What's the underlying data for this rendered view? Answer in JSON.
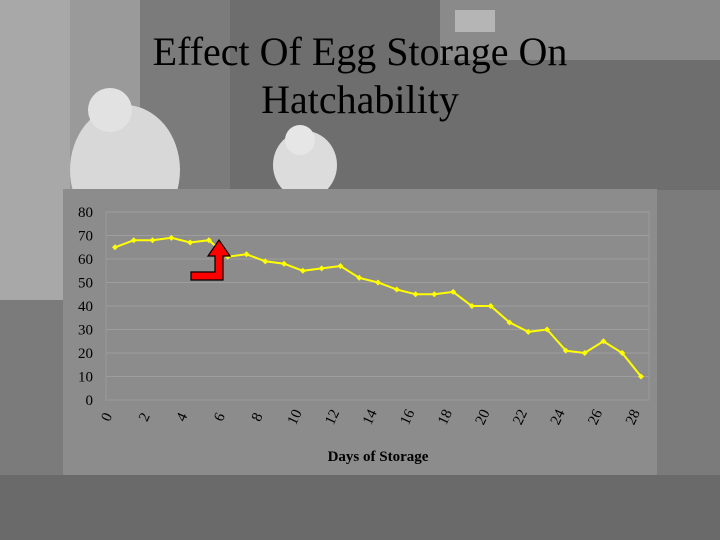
{
  "slide": {
    "title_line1": "Effect Of Egg Storage On",
    "title_line2": "Hatchability"
  },
  "colors": {
    "panel": "#8c8c8c",
    "series": "#ffff00",
    "arrow_fill": "#ff0000"
  },
  "chart_data": {
    "type": "line",
    "title": "",
    "xlabel": "Days of Storage",
    "ylabel": "",
    "xlim": [
      0,
      28
    ],
    "ylim": [
      0,
      80
    ],
    "x_ticks": [
      0,
      2,
      4,
      6,
      8,
      10,
      12,
      14,
      16,
      18,
      20,
      22,
      24,
      26,
      28
    ],
    "y_ticks": [
      0,
      10,
      20,
      30,
      40,
      50,
      60,
      70,
      80
    ],
    "grid": "horizontal",
    "legend": "none",
    "series": [
      {
        "x": [
          0,
          1,
          2,
          3,
          4,
          5,
          6,
          7,
          8,
          9,
          10,
          11,
          12,
          13,
          14,
          15,
          16,
          17,
          18,
          19,
          20,
          21,
          22,
          23,
          24,
          25,
          26,
          27,
          28
        ],
        "values": [
          65,
          68,
          68,
          69,
          67,
          68,
          61,
          62,
          59,
          58,
          55,
          56,
          57,
          52,
          50,
          47,
          45,
          45,
          46,
          40,
          40,
          33,
          29,
          30,
          21,
          20,
          25,
          20,
          10
        ]
      }
    ]
  }
}
